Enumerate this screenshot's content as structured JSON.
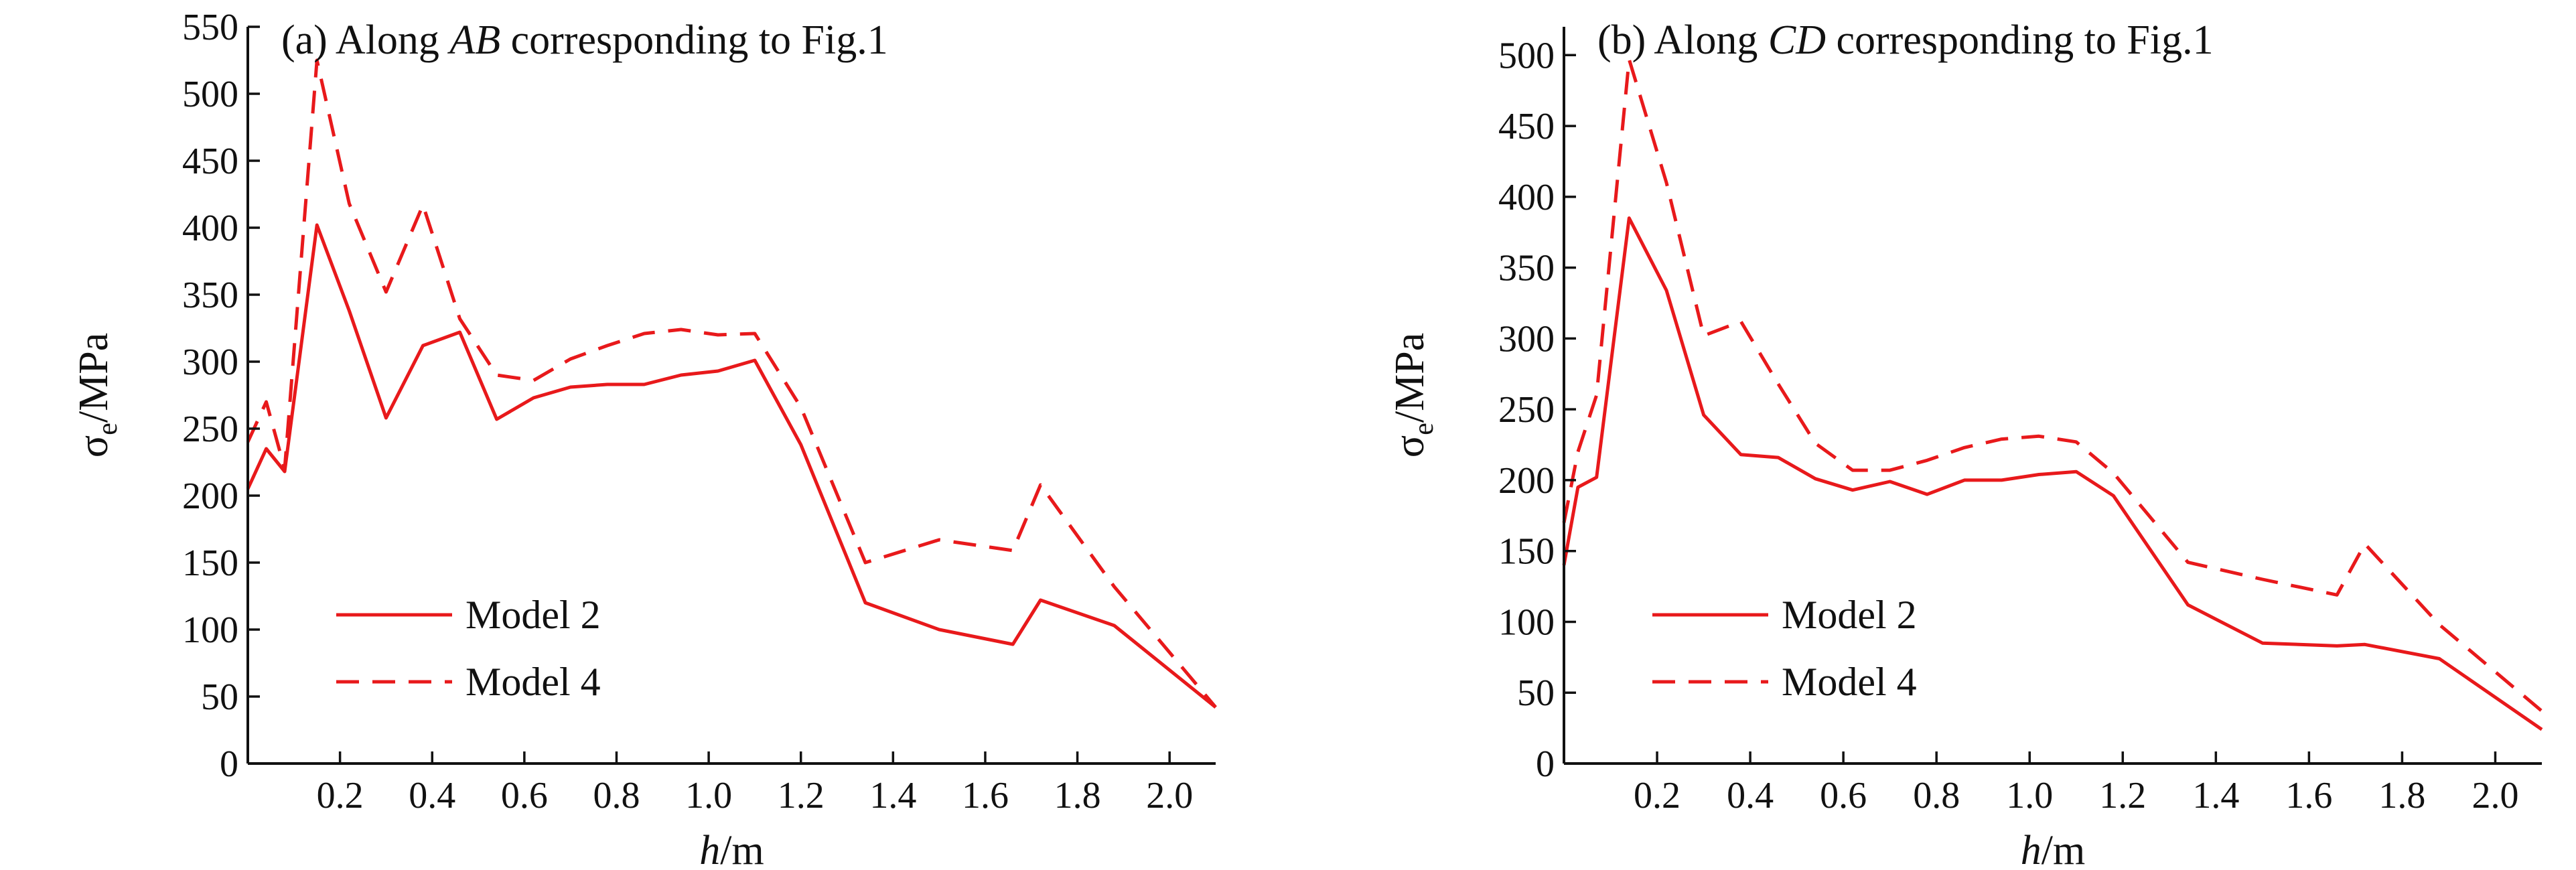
{
  "colors": {
    "series": "#e8191b",
    "axis": "#111111"
  },
  "chart_data": [
    {
      "type": "line",
      "title_prefix": "(a) Along ",
      "title_italic": "AB",
      "title_suffix": " corresponding to Fig.1",
      "xlabel_italic": "h",
      "xlabel_suffix": "/m",
      "ylabel_main": "σ",
      "ylabel_sub": "e",
      "ylabel_suffix": "/MPa",
      "xlim": [
        0,
        2.1
      ],
      "ylim": [
        0,
        550
      ],
      "xticks": [
        0.2,
        0.4,
        0.6,
        0.8,
        1.0,
        1.2,
        1.4,
        1.6,
        1.8,
        2.0
      ],
      "xtick_labels": [
        "0.2",
        "0.4",
        "0.6",
        "0.8",
        "1.0",
        "1.2",
        "1.4",
        "1.6",
        "1.8",
        "2.0"
      ],
      "yticks": [
        0,
        50,
        100,
        150,
        200,
        250,
        300,
        350,
        400,
        450,
        500,
        550
      ],
      "ytick_labels": [
        "0",
        "50",
        "100",
        "150",
        "200",
        "250",
        "300",
        "350",
        "400",
        "450",
        "500",
        "550"
      ],
      "legend_position": "bottom-left",
      "series": [
        {
          "name": "Model 2",
          "style": "solid",
          "x": [
            0,
            0.04,
            0.08,
            0.15,
            0.22,
            0.3,
            0.38,
            0.46,
            0.54,
            0.62,
            0.7,
            0.78,
            0.86,
            0.94,
            1.02,
            1.1,
            1.2,
            1.34,
            1.5,
            1.66,
            1.72,
            1.88,
            2.1
          ],
          "y": [
            205,
            235,
            218,
            402,
            338,
            258,
            312,
            322,
            257,
            273,
            281,
            283,
            283,
            290,
            293,
            301,
            238,
            120,
            100,
            89,
            122,
            103,
            42
          ]
        },
        {
          "name": "Model 4",
          "style": "dashed",
          "x": [
            0,
            0.04,
            0.08,
            0.15,
            0.22,
            0.3,
            0.38,
            0.46,
            0.54,
            0.62,
            0.7,
            0.78,
            0.86,
            0.94,
            1.02,
            1.1,
            1.2,
            1.34,
            1.5,
            1.66,
            1.72,
            1.88,
            2.1
          ],
          "y": [
            240,
            270,
            220,
            525,
            418,
            352,
            417,
            332,
            290,
            286,
            302,
            312,
            321,
            324,
            320,
            321,
            266,
            150,
            167,
            159,
            208,
            132,
            42
          ]
        }
      ]
    },
    {
      "type": "line",
      "title_prefix": "(b) Along ",
      "title_italic": "CD",
      "title_suffix": " corresponding to Fig.1",
      "xlabel_italic": "h",
      "xlabel_suffix": "/m",
      "ylabel_main": "σ",
      "ylabel_sub": "e",
      "ylabel_suffix": "/MPa",
      "xlim": [
        0,
        2.1
      ],
      "ylim": [
        0,
        520
      ],
      "xticks": [
        0.2,
        0.4,
        0.6,
        0.8,
        1.0,
        1.2,
        1.4,
        1.6,
        1.8,
        2.0
      ],
      "xtick_labels": [
        "0.2",
        "0.4",
        "0.6",
        "0.8",
        "1.0",
        "1.2",
        "1.4",
        "1.6",
        "1.8",
        "2.0"
      ],
      "yticks": [
        0,
        50,
        100,
        150,
        200,
        250,
        300,
        350,
        400,
        450,
        500
      ],
      "ytick_labels": [
        "0",
        "50",
        "100",
        "150",
        "200",
        "250",
        "300",
        "350",
        "400",
        "450",
        "500"
      ],
      "legend_position": "bottom-left",
      "series": [
        {
          "name": "Model 2",
          "style": "solid",
          "x": [
            0,
            0.03,
            0.07,
            0.14,
            0.22,
            0.3,
            0.38,
            0.46,
            0.54,
            0.62,
            0.7,
            0.78,
            0.86,
            0.94,
            1.02,
            1.1,
            1.18,
            1.34,
            1.5,
            1.66,
            1.72,
            1.88,
            2.1
          ],
          "y": [
            140,
            195,
            202,
            385,
            334,
            246,
            218,
            216,
            201,
            193,
            199,
            190,
            200,
            200,
            204,
            206,
            189,
            112,
            85,
            83,
            84,
            74,
            24
          ]
        },
        {
          "name": "Model 4",
          "style": "dashed",
          "x": [
            0,
            0.03,
            0.07,
            0.14,
            0.22,
            0.3,
            0.38,
            0.46,
            0.54,
            0.62,
            0.7,
            0.78,
            0.86,
            0.94,
            1.02,
            1.1,
            1.18,
            1.34,
            1.5,
            1.66,
            1.72,
            1.88,
            2.1
          ],
          "y": [
            170,
            220,
            260,
            497,
            410,
            302,
            312,
            268,
            226,
            207,
            207,
            214,
            223,
            229,
            231,
            227,
            205,
            142,
            130,
            119,
            155,
            98,
            37
          ]
        }
      ]
    }
  ]
}
